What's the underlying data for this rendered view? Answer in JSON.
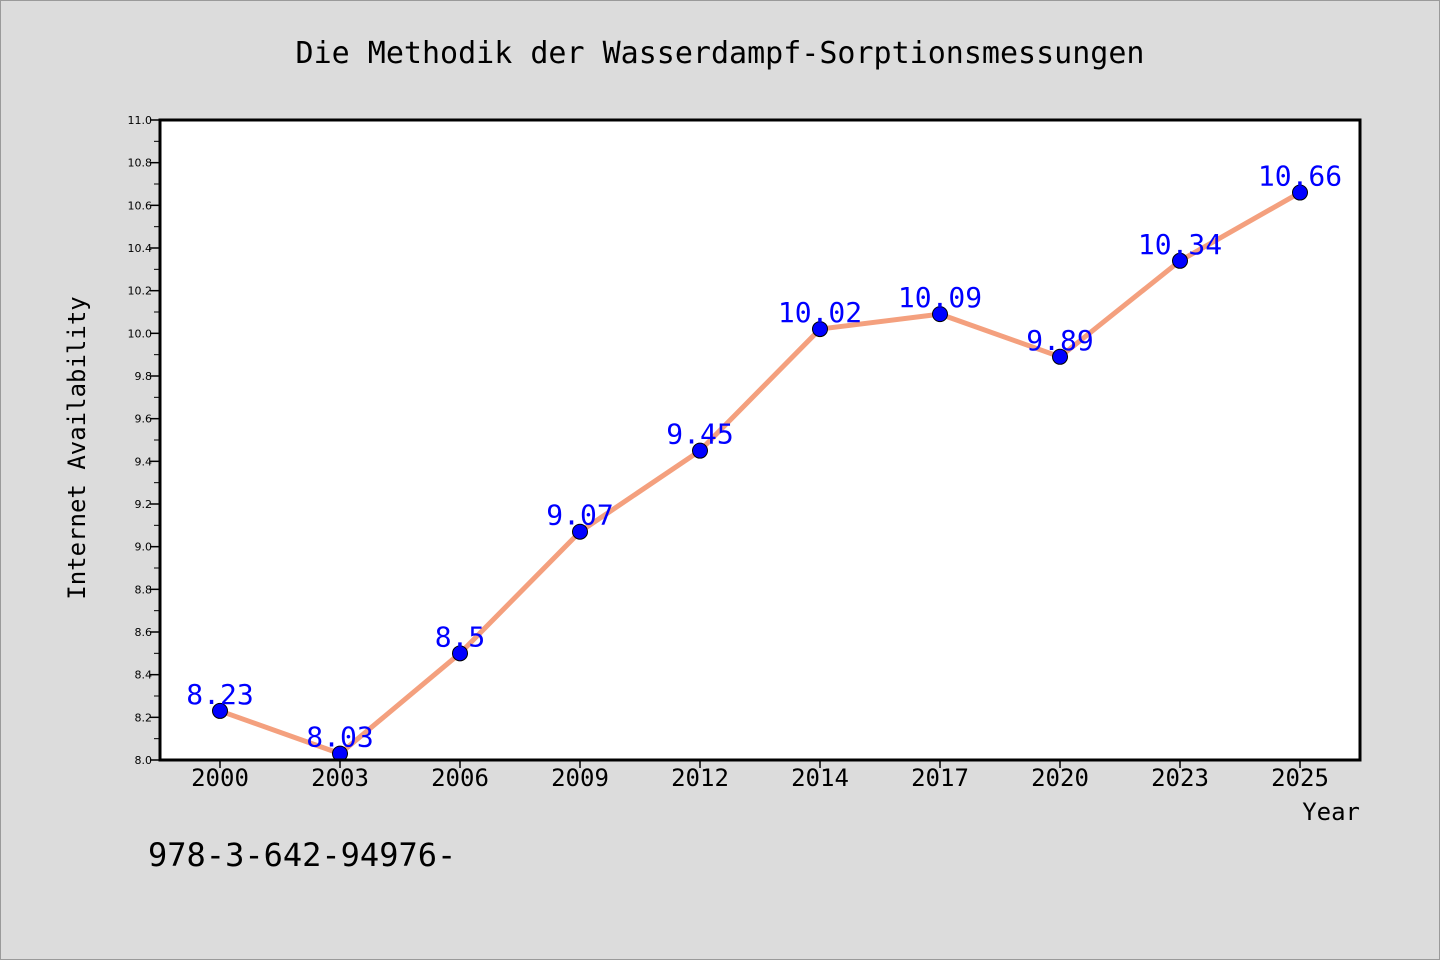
{
  "chart_data": {
    "type": "line",
    "title": "Die Methodik der Wasserdampf-Sorptionsmessungen",
    "xlabel": "Year",
    "ylabel": "Internet Availability",
    "categories": [
      "2000",
      "2003",
      "2006",
      "2009",
      "2012",
      "2014",
      "2017",
      "2020",
      "2023",
      "2025"
    ],
    "series": [
      {
        "values": [
          8.23,
          8.03,
          8.5,
          9.07,
          9.45,
          10.02,
          10.09,
          9.89,
          10.34,
          10.66
        ],
        "data_labels": [
          "8.23",
          "8.03",
          "8.5",
          "9.07",
          "9.45",
          "10.02",
          "10.09",
          "9.89",
          "10.34",
          "10.66"
        ]
      }
    ],
    "ylim": [
      8.0,
      11.0
    ],
    "yticks": [
      "8.0",
      "8.2",
      "8.4",
      "8.6",
      "8.8",
      "9.0",
      "9.2",
      "9.4",
      "9.6",
      "9.8",
      "10.0",
      "10.2",
      "10.4",
      "10.6",
      "10.8",
      "11.0"
    ],
    "grid": false,
    "legend": "none",
    "colors": {
      "line": "#f4a07e",
      "marker": "#0000ff",
      "data_label": "#0000ff",
      "background": "#dcdcdc",
      "plot_background": "#ffffff"
    }
  },
  "footer": {
    "isbn_text": "978-3-642-94976-"
  }
}
